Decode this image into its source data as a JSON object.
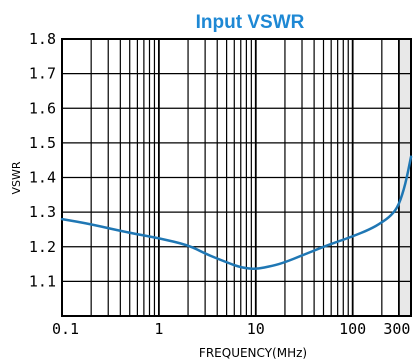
{
  "chart_data": {
    "type": "line",
    "title": "Input VSWR",
    "xlabel": "FREQUENCY(MHz)",
    "ylabel": "VSWR",
    "x_scale": "log",
    "xlim": [
      0.1,
      400
    ],
    "ylim": [
      1.0,
      1.8
    ],
    "x_ticks": [
      {
        "value": 0.1,
        "label": "0.1"
      },
      {
        "value": 1,
        "label": "1"
      },
      {
        "value": 10,
        "label": "10"
      },
      {
        "value": 100,
        "label": "100"
      },
      {
        "value": 300,
        "label": "300"
      }
    ],
    "y_ticks": [
      {
        "value": 1.1,
        "label": "1.1"
      },
      {
        "value": 1.2,
        "label": "1.2"
      },
      {
        "value": 1.3,
        "label": "1.3"
      },
      {
        "value": 1.4,
        "label": "1.4"
      },
      {
        "value": 1.5,
        "label": "1.5"
      },
      {
        "value": 1.6,
        "label": "1.6"
      },
      {
        "value": 1.7,
        "label": "1.7"
      },
      {
        "value": 1.8,
        "label": "1.8"
      }
    ],
    "grid": true,
    "shaded_region": {
      "x_from": 300,
      "x_to": 400
    },
    "line_color": "#1f77b4",
    "title_color": "#1e88d4",
    "shade_color": "#e8e8e8",
    "series": [
      {
        "x": [
          0.1,
          0.2,
          0.5,
          1,
          2,
          3,
          5,
          7,
          10,
          15,
          20,
          30,
          50,
          70,
          100,
          150,
          200,
          250,
          300,
          350,
          400
        ],
        "y": [
          1.28,
          1.265,
          1.24,
          1.225,
          1.205,
          1.18,
          1.155,
          1.14,
          1.135,
          1.145,
          1.155,
          1.175,
          1.2,
          1.215,
          1.23,
          1.25,
          1.27,
          1.29,
          1.32,
          1.38,
          1.46
        ]
      }
    ]
  }
}
